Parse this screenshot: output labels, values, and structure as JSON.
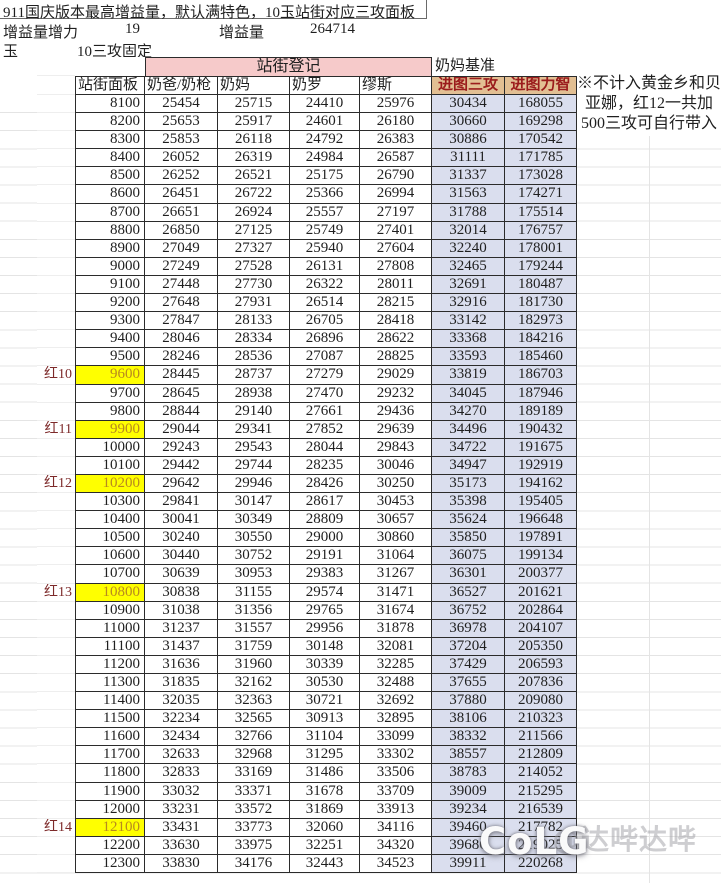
{
  "title": "911国庆版本最高增益量，默认满特色，10玉站街对应三攻面板",
  "params": {
    "gain_label": "增益量增力",
    "gain_value": "19",
    "amount_label": "增益量",
    "amount_value": "264714",
    "jade_label": "玉",
    "jade_value": "10三攻固定"
  },
  "table": {
    "street_group_header": "站街登记",
    "milk_base_header": "奶妈基准",
    "columns": [
      "站街面板",
      "奶爸/奶枪",
      "奶妈",
      "奶罗",
      "缪斯",
      "进图三攻",
      "进图力智"
    ],
    "rows": [
      {
        "red": "",
        "panel": "8100",
        "hl": false,
        "v": [
          "25454",
          "25715",
          "24410",
          "25976",
          "30434",
          "168055"
        ]
      },
      {
        "red": "",
        "panel": "8200",
        "hl": false,
        "v": [
          "25653",
          "25917",
          "24601",
          "26180",
          "30660",
          "169298"
        ]
      },
      {
        "red": "",
        "panel": "8300",
        "hl": false,
        "v": [
          "25853",
          "26118",
          "24792",
          "26383",
          "30886",
          "170542"
        ]
      },
      {
        "red": "",
        "panel": "8400",
        "hl": false,
        "v": [
          "26052",
          "26319",
          "24984",
          "26587",
          "31111",
          "171785"
        ]
      },
      {
        "red": "",
        "panel": "8500",
        "hl": false,
        "v": [
          "26252",
          "26521",
          "25175",
          "26790",
          "31337",
          "173028"
        ]
      },
      {
        "red": "",
        "panel": "8600",
        "hl": false,
        "v": [
          "26451",
          "26722",
          "25366",
          "26994",
          "31563",
          "174271"
        ]
      },
      {
        "red": "",
        "panel": "8700",
        "hl": false,
        "v": [
          "26651",
          "26924",
          "25557",
          "27197",
          "31788",
          "175514"
        ]
      },
      {
        "red": "",
        "panel": "8800",
        "hl": false,
        "v": [
          "26850",
          "27125",
          "25749",
          "27401",
          "32014",
          "176757"
        ]
      },
      {
        "red": "",
        "panel": "8900",
        "hl": false,
        "v": [
          "27049",
          "27327",
          "25940",
          "27604",
          "32240",
          "178001"
        ]
      },
      {
        "red": "",
        "panel": "9000",
        "hl": false,
        "v": [
          "27249",
          "27528",
          "26131",
          "27808",
          "32465",
          "179244"
        ]
      },
      {
        "red": "",
        "panel": "9100",
        "hl": false,
        "v": [
          "27448",
          "27730",
          "26322",
          "28011",
          "32691",
          "180487"
        ]
      },
      {
        "red": "",
        "panel": "9200",
        "hl": false,
        "v": [
          "27648",
          "27931",
          "26514",
          "28215",
          "32916",
          "181730"
        ]
      },
      {
        "red": "",
        "panel": "9300",
        "hl": false,
        "v": [
          "27847",
          "28133",
          "26705",
          "28418",
          "33142",
          "182973"
        ]
      },
      {
        "red": "",
        "panel": "9400",
        "hl": false,
        "v": [
          "28046",
          "28334",
          "26896",
          "28622",
          "33368",
          "184216"
        ]
      },
      {
        "red": "",
        "panel": "9500",
        "hl": false,
        "v": [
          "28246",
          "28536",
          "27087",
          "28825",
          "33593",
          "185460"
        ]
      },
      {
        "red": "红10",
        "panel": "9600",
        "hl": true,
        "v": [
          "28445",
          "28737",
          "27279",
          "29029",
          "33819",
          "186703"
        ]
      },
      {
        "red": "",
        "panel": "9700",
        "hl": false,
        "v": [
          "28645",
          "28938",
          "27470",
          "29232",
          "34045",
          "187946"
        ]
      },
      {
        "red": "",
        "panel": "9800",
        "hl": false,
        "v": [
          "28844",
          "29140",
          "27661",
          "29436",
          "34270",
          "189189"
        ]
      },
      {
        "red": "红11",
        "panel": "9900",
        "hl": true,
        "v": [
          "29044",
          "29341",
          "27852",
          "29639",
          "34496",
          "190432"
        ]
      },
      {
        "red": "",
        "panel": "10000",
        "hl": false,
        "v": [
          "29243",
          "29543",
          "28044",
          "29843",
          "34722",
          "191675"
        ]
      },
      {
        "red": "",
        "panel": "10100",
        "hl": false,
        "v": [
          "29442",
          "29744",
          "28235",
          "30046",
          "34947",
          "192919"
        ]
      },
      {
        "red": "红12",
        "panel": "10200",
        "hl": true,
        "v": [
          "29642",
          "29946",
          "28426",
          "30250",
          "35173",
          "194162"
        ]
      },
      {
        "red": "",
        "panel": "10300",
        "hl": false,
        "v": [
          "29841",
          "30147",
          "28617",
          "30453",
          "35398",
          "195405"
        ]
      },
      {
        "red": "",
        "panel": "10400",
        "hl": false,
        "v": [
          "30041",
          "30349",
          "28809",
          "30657",
          "35624",
          "196648"
        ]
      },
      {
        "red": "",
        "panel": "10500",
        "hl": false,
        "v": [
          "30240",
          "30550",
          "29000",
          "30860",
          "35850",
          "197891"
        ]
      },
      {
        "red": "",
        "panel": "10600",
        "hl": false,
        "v": [
          "30440",
          "30752",
          "29191",
          "31064",
          "36075",
          "199134"
        ]
      },
      {
        "red": "",
        "panel": "10700",
        "hl": false,
        "v": [
          "30639",
          "30953",
          "29383",
          "31267",
          "36301",
          "200377"
        ]
      },
      {
        "red": "红13",
        "panel": "10800",
        "hl": true,
        "v": [
          "30838",
          "31155",
          "29574",
          "31471",
          "36527",
          "201621"
        ]
      },
      {
        "red": "",
        "panel": "10900",
        "hl": false,
        "v": [
          "31038",
          "31356",
          "29765",
          "31674",
          "36752",
          "202864"
        ]
      },
      {
        "red": "",
        "panel": "11000",
        "hl": false,
        "v": [
          "31237",
          "31557",
          "29956",
          "31878",
          "36978",
          "204107"
        ]
      },
      {
        "red": "",
        "panel": "11100",
        "hl": false,
        "v": [
          "31437",
          "31759",
          "30148",
          "32081",
          "37204",
          "205350"
        ]
      },
      {
        "red": "",
        "panel": "11200",
        "hl": false,
        "v": [
          "31636",
          "31960",
          "30339",
          "32285",
          "37429",
          "206593"
        ]
      },
      {
        "red": "",
        "panel": "11300",
        "hl": false,
        "v": [
          "31835",
          "32162",
          "30530",
          "32488",
          "37655",
          "207836"
        ]
      },
      {
        "red": "",
        "panel": "11400",
        "hl": false,
        "v": [
          "32035",
          "32363",
          "30721",
          "32692",
          "37880",
          "209080"
        ]
      },
      {
        "red": "",
        "panel": "11500",
        "hl": false,
        "v": [
          "32234",
          "32565",
          "30913",
          "32895",
          "38106",
          "210323"
        ]
      },
      {
        "red": "",
        "panel": "11600",
        "hl": false,
        "v": [
          "32434",
          "32766",
          "31104",
          "33099",
          "38332",
          "211566"
        ]
      },
      {
        "red": "",
        "panel": "11700",
        "hl": false,
        "v": [
          "32633",
          "32968",
          "31295",
          "33302",
          "38557",
          "212809"
        ]
      },
      {
        "red": "",
        "panel": "11800",
        "hl": false,
        "v": [
          "32833",
          "33169",
          "31486",
          "33506",
          "38783",
          "214052"
        ]
      },
      {
        "red": "",
        "panel": "11900",
        "hl": false,
        "v": [
          "33032",
          "33371",
          "31678",
          "33709",
          "39009",
          "215295"
        ]
      },
      {
        "red": "",
        "panel": "12000",
        "hl": false,
        "v": [
          "33231",
          "33572",
          "31869",
          "33913",
          "39234",
          "216539"
        ]
      },
      {
        "red": "红14",
        "panel": "12100",
        "hl": true,
        "v": [
          "33431",
          "33773",
          "32060",
          "34116",
          "39460",
          "217782"
        ]
      },
      {
        "red": "",
        "panel": "12200",
        "hl": false,
        "v": [
          "33630",
          "33975",
          "32251",
          "34320",
          "39686",
          "219025"
        ]
      },
      {
        "red": "",
        "panel": "12300",
        "hl": false,
        "v": [
          "33830",
          "34176",
          "32443",
          "34523",
          "39911",
          "220268"
        ]
      }
    ]
  },
  "note_lines": [
    "※不计入黄金乡和贝",
    "亚娜，红12一共加",
    "500三攻可自行带入"
  ],
  "watermark": {
    "logo": "CoLG",
    "handle": "@达哔达哔"
  },
  "colors": {
    "street_header_bg": "#f6caca",
    "milk_header_bg": "#e2bf93",
    "milk_header_text": "#9b1c1c",
    "entry_columns_bg": "#dadeee",
    "highlight_bg": "#ffff00",
    "highlight_text": "#b8891f"
  }
}
